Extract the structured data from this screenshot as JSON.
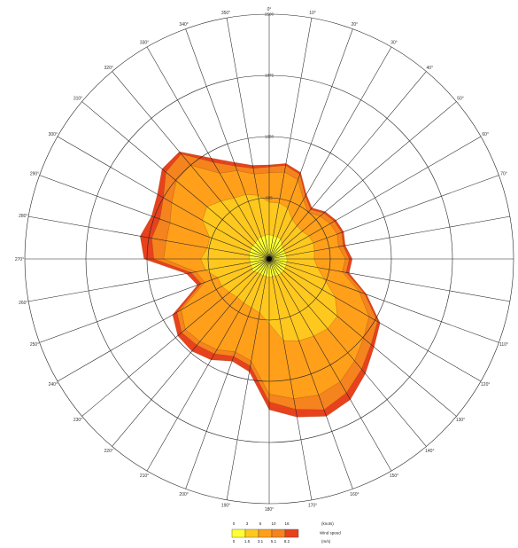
{
  "chart_data": {
    "type": "wind-rose",
    "directions_deg": [
      0,
      10,
      20,
      30,
      40,
      50,
      60,
      70,
      80,
      90,
      100,
      110,
      120,
      130,
      140,
      150,
      160,
      170,
      180,
      190,
      200,
      210,
      220,
      230,
      240,
      250,
      260,
      270,
      280,
      290,
      300,
      310,
      320,
      330,
      340,
      350
    ],
    "direction_labels": [
      "0°",
      "10°",
      "20°",
      "30°",
      "40°",
      "50°",
      "60°",
      "70°",
      "",
      "",
      "",
      "110°",
      "120°",
      "130°",
      "140°",
      "150°",
      "160°",
      "170°",
      "180°",
      "190°",
      "200°",
      "210°",
      "220°",
      "230°",
      "240°",
      "250°",
      "260°",
      "270°",
      "280°",
      "290°",
      "300°",
      "310°",
      "320°",
      "330°",
      "340°",
      "350°"
    ],
    "radial_rings": [
      {
        "value": 625,
        "label": "625"
      },
      {
        "value": 1250,
        "label": "1250"
      },
      {
        "value": 1875,
        "label": "1875"
      },
      {
        "value": 2500,
        "label": "2500"
      }
    ],
    "rmax": 2500,
    "bands": [
      {
        "color": "#ffff33",
        "values": [
          249,
          240,
          240,
          235,
          200,
          180,
          175,
          175,
          180,
          180,
          185,
          185,
          190,
          195,
          190,
          190,
          185,
          180,
          190,
          180,
          180,
          180,
          180,
          205,
          205,
          195,
          200,
          200,
          205,
          210,
          215,
          215,
          215,
          235,
          240,
          245
        ]
      },
      {
        "color": "#ffc81e",
        "values": [
          580,
          580,
          555,
          470,
          440,
          440,
          470,
          480,
          470,
          460,
          500,
          600,
          780,
          910,
          930,
          910,
          890,
          850,
          660,
          560,
          530,
          520,
          510,
          530,
          560,
          560,
          660,
          700,
          640,
          650,
          790,
          830,
          770,
          720,
          700,
          660
        ]
      },
      {
        "color": "#ff9f1a",
        "values": [
          880,
          900,
          860,
          700,
          620,
          680,
          720,
          740,
          720,
          780,
          760,
          980,
          1180,
          1260,
          1360,
          1450,
          1480,
          1450,
          1380,
          1060,
          1010,
          1070,
          1100,
          1120,
          1040,
          700,
          760,
          1080,
          1070,
          1080,
          1150,
          1240,
          1250,
          1010,
          960,
          880
        ]
      },
      {
        "color": "#f5831e",
        "values": [
          940,
          970,
          920,
          740,
          660,
          730,
          770,
          790,
          770,
          820,
          800,
          1040,
          1280,
          1360,
          1470,
          1580,
          1640,
          1560,
          1460,
          1110,
          1060,
          1120,
          1150,
          1170,
          1090,
          740,
          810,
          1180,
          1220,
          1190,
          1250,
          1380,
          1400,
          1140,
          1010,
          940
        ]
      },
      {
        "color": "#e8411d",
        "values": [
          960,
          990,
          940,
          760,
          680,
          750,
          790,
          810,
          790,
          850,
          830,
          1060,
          1310,
          1400,
          1530,
          1660,
          1710,
          1640,
          1540,
          1170,
          1110,
          1190,
          1230,
          1220,
          1140,
          780,
          860,
          1280,
          1340,
          1280,
          1320,
          1430,
          1430,
          1190,
          1050,
          970
        ]
      }
    ],
    "legend": {
      "knots_ticks": [
        "0",
        "3",
        "6",
        "10",
        "16"
      ],
      "knots_unit": "(knots)",
      "ms_ticks": [
        "0",
        "1.5",
        "3.1",
        "5.1",
        "8.2"
      ],
      "ms_unit": "(m/s)",
      "title": "Wind speed",
      "colors": [
        "#ffff33",
        "#ffc81e",
        "#ff9f1a",
        "#f5831e",
        "#e8411d"
      ]
    }
  }
}
